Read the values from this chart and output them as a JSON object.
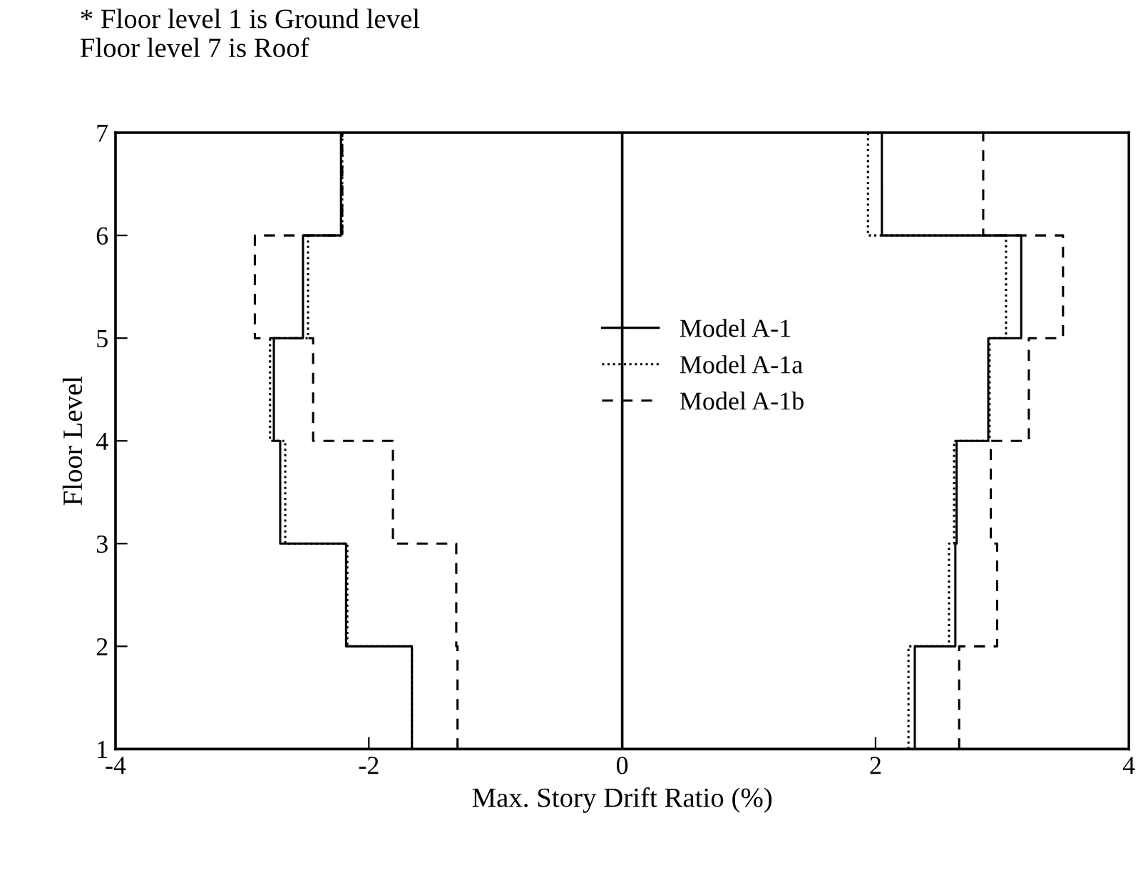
{
  "chart_data": {
    "type": "line",
    "xlabel": "Max. Story Drift Ratio (%)",
    "ylabel": "Floor Level",
    "annotations": [
      "* Floor level 1 is Ground level\nFloor level 7 is Roof"
    ],
    "xlim": [
      -4,
      4
    ],
    "xticks": [
      -4,
      -2,
      0,
      2,
      4
    ],
    "ylim": [
      1,
      7
    ],
    "yticks": [
      1,
      2,
      3,
      4,
      5,
      6,
      7
    ],
    "grid": false,
    "legend": "center",
    "marker": "none",
    "ref_lines": [
      {
        "axis": "x",
        "value": 0,
        "color": "#000000",
        "line_style": "solid"
      }
    ],
    "series": [
      {
        "name": "Model A-1",
        "color": "#000000",
        "line_style": "solid",
        "x": [
          2.31,
          2.31,
          2.63,
          2.63,
          2.64,
          2.64,
          2.89,
          2.89,
          3.15,
          3.15,
          2.05,
          2.05
        ],
        "values": [
          1,
          2,
          2,
          3,
          3,
          4,
          4,
          5,
          5,
          6,
          6,
          7
        ]
      },
      {
        "name": "Model A-1a",
        "color": "#000000",
        "line_style": "dotted",
        "x": [
          2.26,
          2.26,
          2.58,
          2.58,
          2.62,
          2.62,
          2.9,
          2.9,
          3.03,
          3.03,
          1.94,
          1.94
        ],
        "values": [
          1,
          2,
          2,
          3,
          3,
          4,
          4,
          5,
          5,
          6,
          6,
          7
        ]
      },
      {
        "name": "Model A-1b",
        "color": "#000000",
        "line_style": "dashed",
        "x": [
          2.66,
          2.66,
          2.96,
          2.96,
          2.91,
          2.91,
          3.21,
          3.21,
          3.48,
          3.48,
          2.85,
          2.85
        ],
        "values": [
          1,
          2,
          2,
          3,
          3,
          4,
          4,
          5,
          5,
          6,
          6,
          7
        ]
      },
      {
        "color": "#000000",
        "line_style": "solid",
        "x": [
          -1.66,
          -1.66,
          -2.18,
          -2.18,
          -2.7,
          -2.7,
          -2.75,
          -2.75,
          -2.52,
          -2.52,
          -2.22,
          -2.22
        ],
        "values": [
          1,
          2,
          2,
          3,
          3,
          4,
          4,
          5,
          5,
          6,
          6,
          7
        ]
      },
      {
        "color": "#000000",
        "line_style": "dotted",
        "x": [
          -1.66,
          -1.66,
          -2.17,
          -2.17,
          -2.66,
          -2.66,
          -2.78,
          -2.78,
          -2.48,
          -2.48,
          -2.21,
          -2.21
        ],
        "values": [
          1,
          2,
          2,
          3,
          3,
          4,
          4,
          5,
          5,
          6,
          6,
          7
        ]
      },
      {
        "color": "#000000",
        "line_style": "dashed",
        "x": [
          -1.3,
          -1.3,
          -1.31,
          -1.31,
          -1.81,
          -1.81,
          -2.44,
          -2.44,
          -2.9,
          -2.9,
          -2.21,
          -2.21
        ],
        "values": [
          1,
          2,
          2,
          3,
          3,
          4,
          4,
          5,
          5,
          6,
          6,
          7
        ]
      }
    ]
  }
}
